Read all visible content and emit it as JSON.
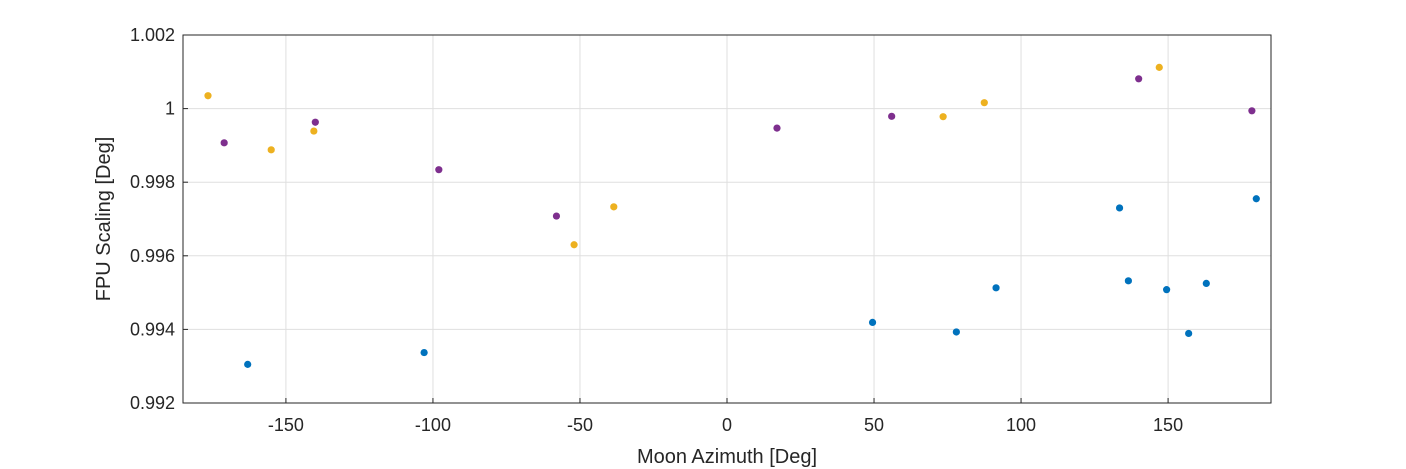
{
  "chart_data": {
    "type": "scatter",
    "xlabel": "Moon Azimuth [Deg]",
    "ylabel": "FPU Scaling [Deg]",
    "xlim": [
      -185,
      185
    ],
    "ylim": [
      0.992,
      1.002
    ],
    "xticks": [
      -150,
      -100,
      -50,
      0,
      50,
      100,
      150
    ],
    "xtick_labels": [
      "-150",
      "-100",
      "-50",
      "0",
      "50",
      "100",
      "150"
    ],
    "yticks": [
      0.992,
      0.994,
      0.996,
      0.998,
      1.0,
      1.002
    ],
    "ytick_labels": [
      "0.992",
      "0.994",
      "0.996",
      "0.998",
      "1",
      "1.002"
    ],
    "grid": true,
    "series": [
      {
        "color": "#0072BD",
        "x": [
          -163,
          -103,
          49.5,
          78,
          91.5,
          133.5,
          136.5,
          149.5,
          157,
          163,
          180
        ],
        "y": [
          0.99305,
          0.99337,
          0.99419,
          0.99393,
          0.99513,
          0.9973,
          0.99532,
          0.99508,
          0.99389,
          0.99525,
          0.99755
        ]
      },
      {
        "color": "#EDB120",
        "x": [
          -176.5,
          -155,
          -140.5,
          -52,
          -38.5,
          73.5,
          87.5,
          147
        ],
        "y": [
          1.00035,
          0.99888,
          0.99939,
          0.9963,
          0.99733,
          0.99978,
          1.00016,
          1.00112
        ]
      },
      {
        "color": "#7E2F8E",
        "x": [
          -171,
          -140,
          -98,
          -58,
          17,
          56,
          140,
          178.5
        ],
        "y": [
          0.99907,
          0.99963,
          0.99834,
          0.99708,
          0.99947,
          0.99979,
          1.00081,
          0.99994
        ]
      }
    ]
  }
}
